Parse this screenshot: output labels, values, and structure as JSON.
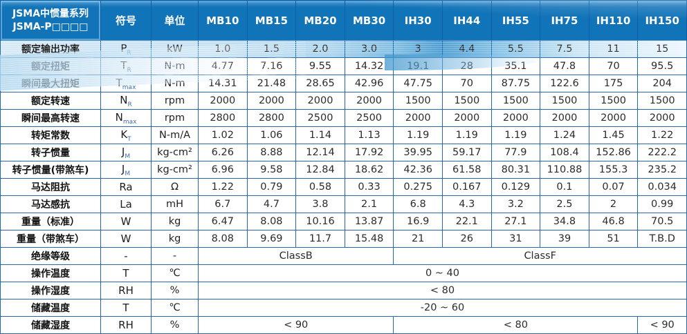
{
  "table": {
    "header": {
      "title_line1": "JSMA中惯量系列",
      "title_line2": "JSMA-P□□□□",
      "symbol_col": "符号",
      "unit_col": "单位",
      "models": [
        "MB10",
        "MB15",
        "MB20",
        "MB30",
        "IH30",
        "IH44",
        "IH55",
        "IH75",
        "IH110",
        "IH150"
      ]
    },
    "rows": [
      {
        "label": "额定输出功率",
        "sym": "P",
        "sub": "R",
        "unit": "kW",
        "values": [
          "1.0",
          "1.5",
          "2.0",
          "3.0",
          "3",
          "4.4",
          "5.5",
          "7.5",
          "11",
          "15"
        ]
      },
      {
        "label": "额定扭矩",
        "sym": "T",
        "sub": "R",
        "unit": "N-m",
        "values": [
          "4.77",
          "7.16",
          "9.55",
          "14.32",
          "19.1",
          "28",
          "35.1",
          "47.8",
          "70",
          "95.5"
        ]
      },
      {
        "label": "瞬间最大扭矩",
        "sym": "T",
        "sub": "max",
        "unit": "N-m",
        "values": [
          "14.31",
          "21.48",
          "28.65",
          "42.96",
          "47.75",
          "70",
          "87.75",
          "122.6",
          "175",
          "204"
        ]
      },
      {
        "label": "额定转速",
        "sym": "N",
        "sub": "R",
        "unit": "rpm",
        "values": [
          "2000",
          "2000",
          "2000",
          "2000",
          "1500",
          "1500",
          "1500",
          "1500",
          "1500",
          "1500"
        ]
      },
      {
        "label": "瞬间最高转速",
        "sym": "N",
        "sub": "max",
        "unit": "rpm",
        "values": [
          "2800",
          "2800",
          "2500",
          "2500",
          "2000",
          "2000",
          "2000",
          "2000",
          "2000",
          "2000"
        ]
      },
      {
        "label": "转矩常数",
        "sym": "K",
        "sub": "T",
        "unit": "N-m/A",
        "values": [
          "1.02",
          "1.06",
          "1.14",
          "1.13",
          "1.19",
          "1.19",
          "1.19",
          "1.24",
          "1.45",
          "1.22"
        ]
      },
      {
        "label": "转子惯量",
        "sym": "J",
        "sub": "M",
        "unit": "kg-cm²",
        "values": [
          "6.26",
          "8.88",
          "12.14",
          "17.92",
          "39.95",
          "59.17",
          "77.9",
          "108.4",
          "152.86",
          "222.2"
        ]
      },
      {
        "label": "转子惯量(带煞车)",
        "sym": "J",
        "sub": "M",
        "unit": "kg-cm²",
        "values": [
          "6.96",
          "9.58",
          "12.84",
          "18.62",
          "42.36",
          "61.58",
          "80.31",
          "110.88",
          "155.3",
          "235.2"
        ]
      },
      {
        "label": "马达阻抗",
        "sym": "Ra",
        "sub": "",
        "unit": "Ω",
        "values": [
          "1.22",
          "0.79",
          "0.58",
          "0.33",
          "0.275",
          "0.167",
          "0.129",
          "0.1",
          "0.07",
          "0.034"
        ]
      },
      {
        "label": "马达感抗",
        "sym": "La",
        "sub": "",
        "unit": "mH",
        "values": [
          "6.7",
          "4.7",
          "3.8",
          "2.1",
          "6.8",
          "4.3",
          "3.2",
          "2.5",
          "2",
          "0.99"
        ]
      },
      {
        "label": "重量（标准）",
        "sym": "W",
        "sub": "",
        "unit": "kg",
        "values": [
          "6.47",
          "8.08",
          "10.16",
          "13.87",
          "16.9",
          "22.1",
          "27.1",
          "34.8",
          "46.8",
          "70.5"
        ]
      },
      {
        "label": "重量（带煞车）",
        "sym": "W",
        "sub": "",
        "unit": "kg",
        "values": [
          "8.08",
          "9.69",
          "11.7",
          "15.48",
          "21",
          "26",
          "31",
          "39",
          "51",
          "T.B.D"
        ]
      },
      {
        "label": "绝缘等级",
        "sym": "-",
        "sub": "",
        "unit": "-",
        "spans": [
          {
            "text": "ClassB",
            "cols": 4
          },
          {
            "text": "ClassF",
            "cols": 6
          }
        ]
      },
      {
        "label": "操作温度",
        "sym": "T",
        "sub": "",
        "unit": "℃",
        "spans": [
          {
            "text": "0 ~ 40",
            "cols": 10
          }
        ]
      },
      {
        "label": "操作湿度",
        "sym": "RH",
        "sub": "",
        "unit": "%",
        "spans": [
          {
            "text": "< 80",
            "cols": 10
          }
        ]
      },
      {
        "label": "储藏温度",
        "sym": "T",
        "sub": "",
        "unit": "℃",
        "spans": [
          {
            "text": "-20 ~ 60",
            "cols": 10
          }
        ]
      },
      {
        "label": "储藏湿度",
        "sym": "RH",
        "sub": "",
        "unit": "%",
        "spans": [
          {
            "text": "< 90",
            "cols": 4
          },
          {
            "text": "< 80",
            "cols": 5
          },
          {
            "text": "< 90",
            "cols": 1
          }
        ]
      }
    ]
  },
  "colors": {
    "header_blue": "#1173b8",
    "border_blue": "#2268ad",
    "wave_light_blue": "#a8d2ec",
    "wave_deep_blue": "#4096cd",
    "text_dark": "#1f1f1f",
    "header_text": "#ffffff"
  }
}
